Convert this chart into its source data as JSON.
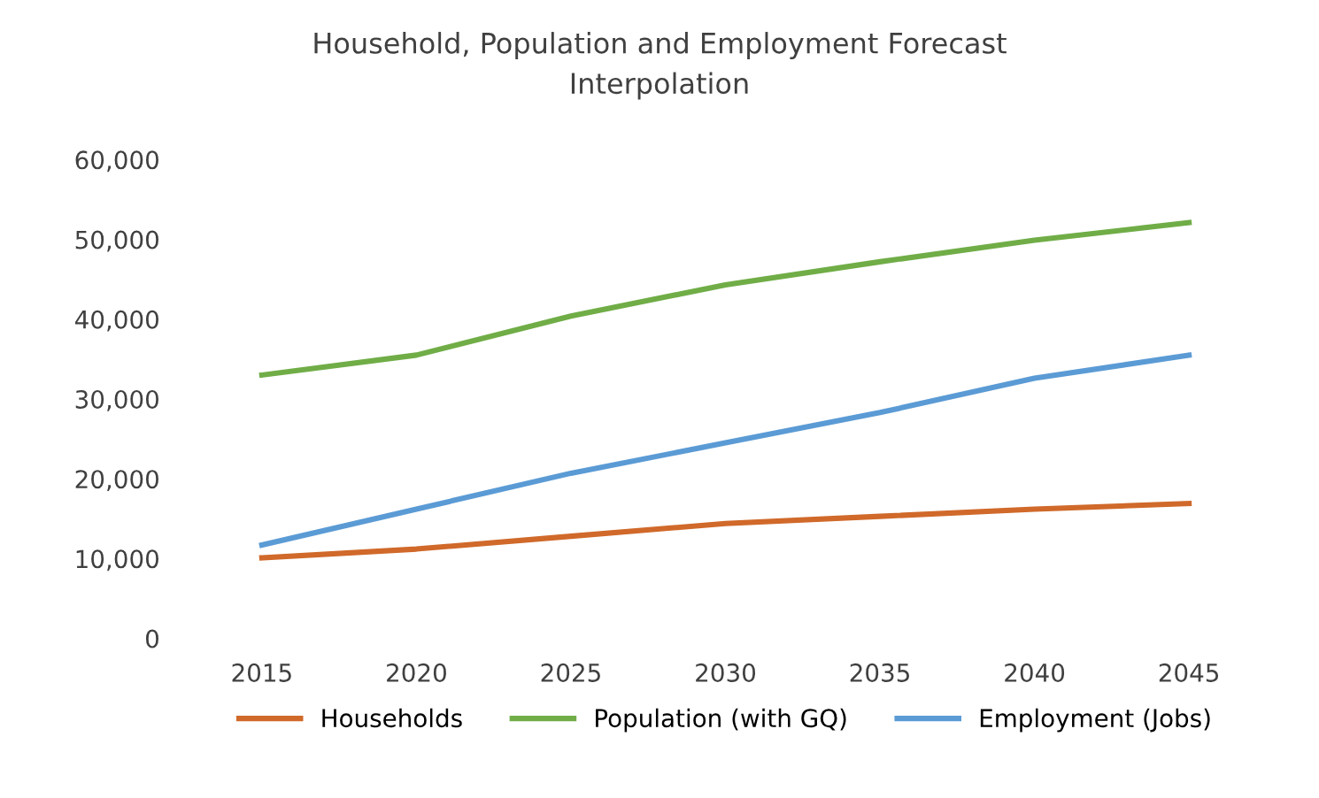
{
  "chart_data": {
    "type": "line",
    "title": "Household, Population and Employment Forecast\nInterpolation",
    "categories": [
      "2015",
      "2020",
      "2025",
      "2030",
      "2035",
      "2040",
      "2045"
    ],
    "series": [
      {
        "name": "Households",
        "color": "#d0692a",
        "values": [
          10100,
          11200,
          12800,
          14400,
          15300,
          16200,
          16900
        ]
      },
      {
        "name": "Population (with GQ)",
        "color": "#70ad47",
        "values": [
          33000,
          35500,
          40400,
          44300,
          47200,
          49900,
          52100
        ]
      },
      {
        "name": "Employment (Jobs)",
        "color": "#5b9bd5",
        "values": [
          11700,
          16200,
          20700,
          24500,
          28300,
          32600,
          35500
        ]
      }
    ],
    "ylim": [
      0,
      60000
    ],
    "yticks": [
      {
        "value": 0,
        "label": "0"
      },
      {
        "value": 10000,
        "label": "10,000"
      },
      {
        "value": 20000,
        "label": "20,000"
      },
      {
        "value": 30000,
        "label": "30,000"
      },
      {
        "value": 40000,
        "label": "40,000"
      },
      {
        "value": 50000,
        "label": "50,000"
      },
      {
        "value": 60000,
        "label": "60,000"
      }
    ],
    "legend": "bottom",
    "grid": false,
    "marker": "none",
    "line_style": "solid"
  }
}
